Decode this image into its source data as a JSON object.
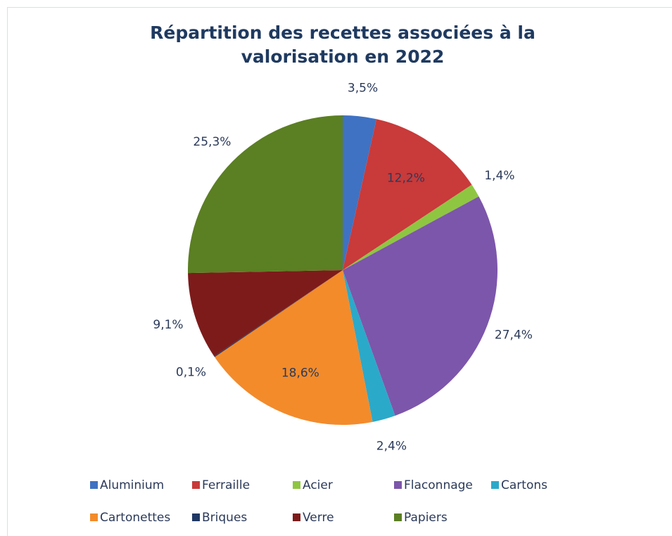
{
  "chart_data": {
    "type": "pie",
    "title": "Répartition des recettes associées à la valorisation en 2022",
    "categories": [
      "Aluminium",
      "Ferraille",
      "Acier",
      "Flaconnage",
      "Cartons",
      "Cartonettes",
      "Briques",
      "Verre",
      "Papiers"
    ],
    "values": [
      3.5,
      12.2,
      1.4,
      27.4,
      2.4,
      18.6,
      0.1,
      9.1,
      25.3
    ],
    "value_labels": [
      "3,5%",
      "12,2%",
      "1,4%",
      "27,4%",
      "2,4%",
      "18,6%",
      "0,1%",
      "9,1%",
      "25,3%"
    ],
    "colors": [
      "#3f72c2",
      "#c93a3a",
      "#8fc641",
      "#7c56aa",
      "#2ba9c9",
      "#f38b2b",
      "#1f3864",
      "#7d1b1b",
      "#5b7f23"
    ],
    "legend": "bottom"
  }
}
